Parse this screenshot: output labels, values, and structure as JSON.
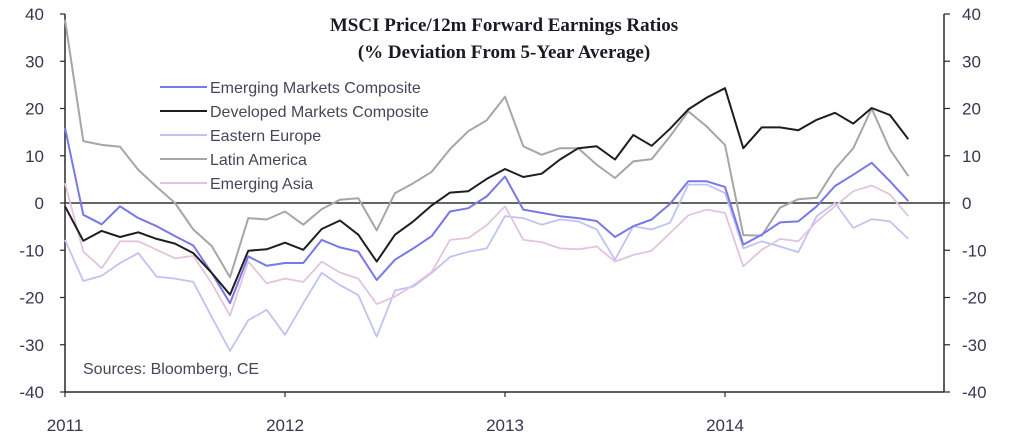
{
  "chart_data": {
    "type": "line",
    "title": "MSCI Price/12m Forward Earnings Ratios",
    "subtitle": "(% Deviation From 5-Year Average)",
    "xlabel": "",
    "ylabel": "",
    "source": "Sources: Bloomberg, CE",
    "x_start": "2011-01",
    "x_frequency": "monthly",
    "x_ticks": [
      "2011",
      "2012",
      "2013",
      "2014"
    ],
    "xlim": [
      2011,
      2015
    ],
    "ylim": [
      -40,
      40
    ],
    "y_ticks": [
      "40",
      "30",
      "20",
      "10",
      "0",
      "-10",
      "-20",
      "-30",
      "-40"
    ],
    "y_tick_values": [
      40,
      30,
      20,
      10,
      0,
      -10,
      -20,
      -30,
      -40
    ],
    "right_axis_ticks": [
      "40",
      "30",
      "20",
      "10",
      "0",
      "-10",
      "-20",
      "-30",
      "-40"
    ],
    "grid": false,
    "zero_line": true,
    "legend_position": "top-left",
    "series": [
      {
        "name": "Emerging Markets Composite",
        "color": "#7878e6",
        "values": [
          15.9,
          -2.5,
          -4.5,
          -0.7,
          -3.2,
          -4.9,
          -7,
          -9,
          -14.8,
          -21.2,
          -11.3,
          -13.3,
          -12.7,
          -12.7,
          -7.8,
          -9.4,
          -10.3,
          -16.3,
          -12,
          -9.6,
          -7,
          -1.8,
          -1.1,
          1.4,
          5.6,
          -1.4,
          -2.1,
          -2.8,
          -3.2,
          -3.8,
          -7.2,
          -4.9,
          -3.5,
          -0.2,
          4.6,
          4.6,
          3.4,
          -8.8,
          -6.7,
          -4.1,
          -3.9,
          -0.7,
          3.6,
          6,
          8.5,
          4.6,
          0.4
        ]
      },
      {
        "name": "Developed Markets Composite",
        "color": "#1e1e1e",
        "values": [
          -0.7,
          -8,
          -5.9,
          -7.2,
          -6.2,
          -7.6,
          -8.6,
          -10.6,
          -14.8,
          -19.4,
          -10.1,
          -9.8,
          -8.4,
          -9.9,
          -5.5,
          -3.7,
          -6.7,
          -12.4,
          -6.7,
          -3.9,
          -0.5,
          2.2,
          2.5,
          5.1,
          7.2,
          5.5,
          6.2,
          9.2,
          11.6,
          12,
          9.2,
          14.4,
          12.1,
          15.7,
          19.8,
          22.3,
          24.3,
          11.6,
          16,
          16,
          15.4,
          17.6,
          19.1,
          16.8,
          20.1,
          18.6,
          13.5
        ]
      },
      {
        "name": "Eastern Europe",
        "color": "#c2c2f2",
        "values": [
          -7.8,
          -16.5,
          -15.4,
          -12.7,
          -10.6,
          -15.6,
          -16,
          -16.7,
          -24.1,
          -31.3,
          -24.8,
          -22.6,
          -27.9,
          -21.2,
          -14.8,
          -17.4,
          -19.5,
          -28.3,
          -18.5,
          -17.7,
          -14.8,
          -11.4,
          -10.3,
          -9.6,
          -2.8,
          -3.2,
          -4.6,
          -3.5,
          -3.9,
          -5.6,
          -12,
          -4.9,
          -5.6,
          -4.2,
          3.9,
          3.9,
          2.1,
          -9.6,
          -8.1,
          -9.2,
          -10.4,
          -2.8,
          0,
          -5.3,
          -3.4,
          -3.9,
          -7.6
        ]
      },
      {
        "name": "Latin America",
        "color": "#a6a6a6",
        "values": [
          38.8,
          13.1,
          12.3,
          11.9,
          7,
          3.4,
          0,
          -5.6,
          -9.1,
          -15.7,
          -3.2,
          -3.5,
          -1.8,
          -4.6,
          -1.3,
          0.7,
          1,
          -5.8,
          2.1,
          4.2,
          6.6,
          11.4,
          15.2,
          17.5,
          22.5,
          12,
          10.2,
          11.6,
          11.6,
          8.1,
          5.3,
          8.8,
          9.3,
          14.1,
          19.4,
          16.2,
          12.3,
          -6.8,
          -6.9,
          -1,
          0.8,
          1.1,
          7.2,
          11.6,
          20,
          11.3,
          5.7
        ]
      },
      {
        "name": "Emerging Asia",
        "color": "#e2c4de",
        "values": [
          4.2,
          -10.3,
          -13.8,
          -8.1,
          -8.1,
          -9.9,
          -11.7,
          -11.2,
          -17,
          -23.8,
          -12.4,
          -17,
          -16,
          -16.7,
          -12.4,
          -14.7,
          -16,
          -21.4,
          -19.8,
          -17.4,
          -14.6,
          -7.8,
          -7.4,
          -4.7,
          -0.7,
          -7.8,
          -8.3,
          -9.6,
          -9.8,
          -9.2,
          -12.4,
          -11,
          -10.1,
          -6.4,
          -2.6,
          -1.4,
          -2.1,
          -13.4,
          -9.9,
          -7.6,
          -8.1,
          -3.9,
          -0.7,
          2.5,
          3.7,
          1.8,
          -2.8
        ]
      }
    ]
  }
}
